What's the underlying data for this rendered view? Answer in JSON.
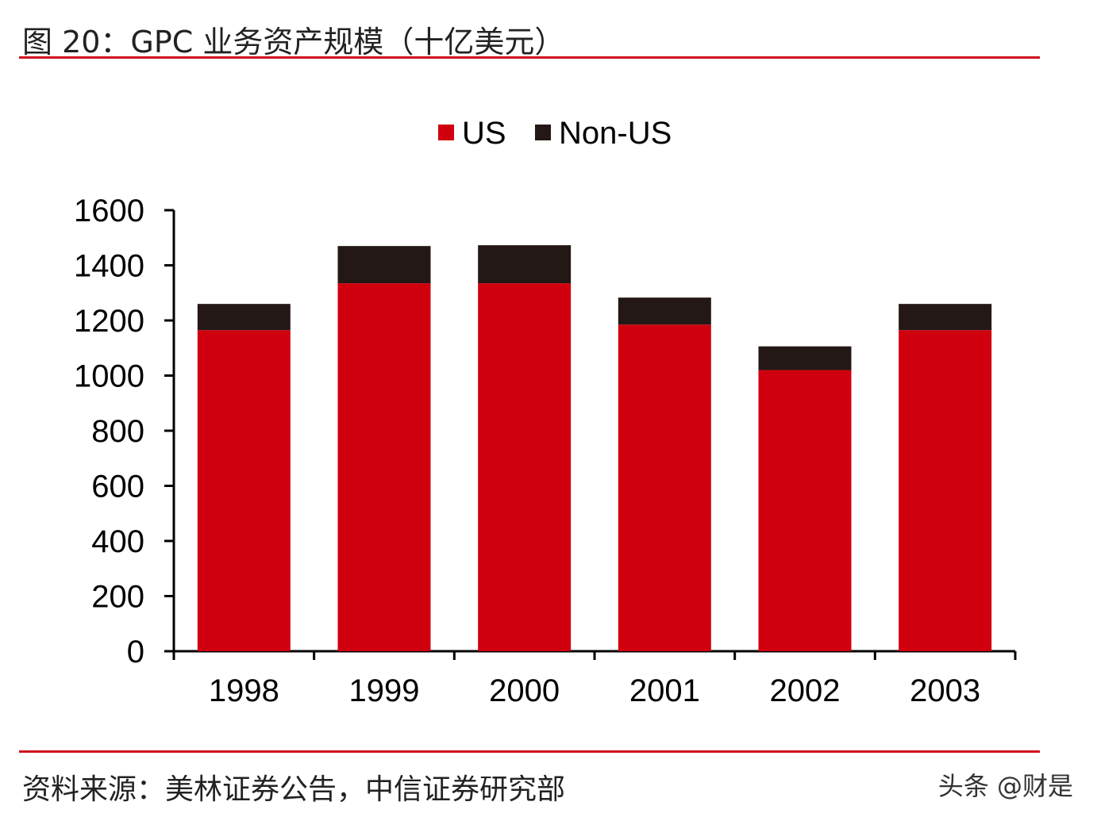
{
  "header": {
    "title": "图 20：GPC 业务资产规模（十亿美元）"
  },
  "footer": {
    "source": "资料来源：美林证券公告，中信证券研究部",
    "watermark": "头条 @财是"
  },
  "chart_data": {
    "type": "bar",
    "stacked": true,
    "title": "",
    "xlabel": "",
    "ylabel": "",
    "categories": [
      "1998",
      "1999",
      "2000",
      "2001",
      "2002",
      "2003"
    ],
    "series": [
      {
        "name": "US",
        "color": "#d0000f",
        "values": [
          1165,
          1335,
          1335,
          1185,
          1020,
          1165
        ]
      },
      {
        "name": "Non-US",
        "color": "#231815",
        "values": [
          95,
          135,
          138,
          98,
          86,
          95
        ]
      }
    ],
    "ylim": [
      0,
      1600
    ],
    "yticks": [
      "0",
      "200",
      "400",
      "600",
      "800",
      "1000",
      "1200",
      "1400",
      "1600"
    ],
    "grid": false,
    "legend": "top-center"
  }
}
